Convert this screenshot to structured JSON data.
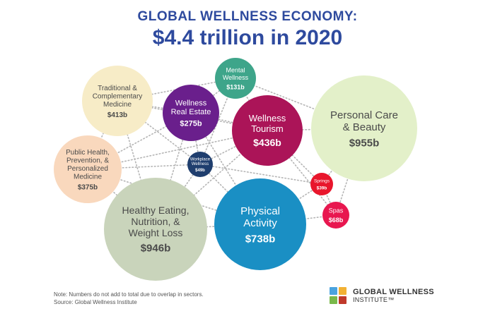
{
  "title": "GLOBAL WELLNESS ECONOMY:",
  "subtitle": "$4.4 trillion in 2020",
  "chart_data": {
    "type": "bubble",
    "title": "GLOBAL WELLNESS ECONOMY:",
    "subtitle": "$4.4 trillion in 2020",
    "unit": "USD billions",
    "series": [
      {
        "label_lines": [
          "Personal Care",
          "& Beauty"
        ],
        "value_label": "$955b",
        "value": 955,
        "color": "#e3f0c9",
        "text_color": "#4a4a4a"
      },
      {
        "label_lines": [
          "Healthy Eating,",
          "Nutrition, &",
          "Weight Loss"
        ],
        "value_label": "$946b",
        "value": 946,
        "color": "#c9d4bb",
        "text_color": "#4a4a4a"
      },
      {
        "label_lines": [
          "Physical",
          "Activity"
        ],
        "value_label": "$738b",
        "value": 738,
        "color": "#1a8fc4",
        "text_color": "#ffffff"
      },
      {
        "label_lines": [
          "Wellness",
          "Tourism"
        ],
        "value_label": "$436b",
        "value": 436,
        "color": "#ab1458",
        "text_color": "#ffffff"
      },
      {
        "label_lines": [
          "Traditional &",
          "Complementary",
          "Medicine"
        ],
        "value_label": "$413b",
        "value": 413,
        "color": "#f7ecc7",
        "text_color": "#4a4a4a"
      },
      {
        "label_lines": [
          "Public Health,",
          "Prevention, &",
          "Personalized",
          "Medicine"
        ],
        "value_label": "$375b",
        "value": 375,
        "color": "#f9d8bd",
        "text_color": "#4a4a4a"
      },
      {
        "label_lines": [
          "Wellness",
          "Real Estate"
        ],
        "value_label": "$275b",
        "value": 275,
        "color": "#6a1f8c",
        "text_color": "#ffffff"
      },
      {
        "label_lines": [
          "Mental",
          "Wellness"
        ],
        "value_label": "$131b",
        "value": 131,
        "color": "#3ea58a",
        "text_color": "#ffffff"
      },
      {
        "label_lines": [
          "Spas"
        ],
        "value_label": "$68b",
        "value": 68,
        "color": "#e8174f",
        "text_color": "#ffffff"
      },
      {
        "label_lines": [
          "Workplace",
          "Wellness"
        ],
        "value_label": "$49b",
        "value": 49,
        "color": "#1f3e6e",
        "text_color": "#ffffff"
      },
      {
        "label_lines": [
          "Springs"
        ],
        "value_label": "$39b",
        "value": 39,
        "color": "#e8162c",
        "text_color": "#ffffff"
      }
    ]
  },
  "footnote": {
    "note": "Note: Numbers do not add to total due to overlap in sectors.",
    "source": "Source: Global Wellness Institute"
  },
  "logo": {
    "line1": "GLOBAL WELLNESS",
    "line2": "INSTITUTE™",
    "colors": [
      "#4aa3df",
      "#f2b134",
      "#79b84a",
      "#c0392b"
    ]
  }
}
